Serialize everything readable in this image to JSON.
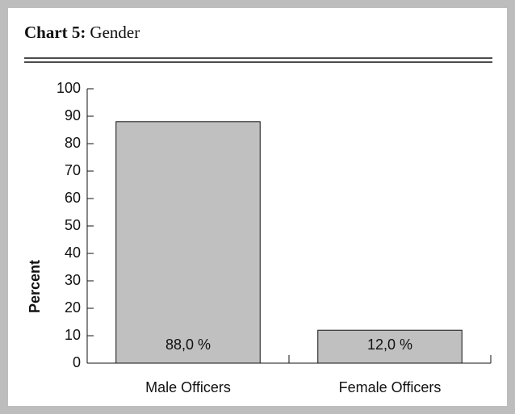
{
  "chart_data": {
    "type": "bar",
    "title_label": "Chart 5:",
    "title": "Gender",
    "ylabel": "Percent",
    "categories": [
      "Male Officers",
      "Female Officers"
    ],
    "values": [
      88,
      12
    ],
    "value_labels": [
      "88,0 %",
      "12,0 %"
    ],
    "color": "#c0c0c0",
    "ylim": [
      0,
      100
    ],
    "yticks": [
      0,
      10,
      20,
      30,
      40,
      50,
      60,
      70,
      80,
      90,
      100
    ],
    "grid": false
  }
}
